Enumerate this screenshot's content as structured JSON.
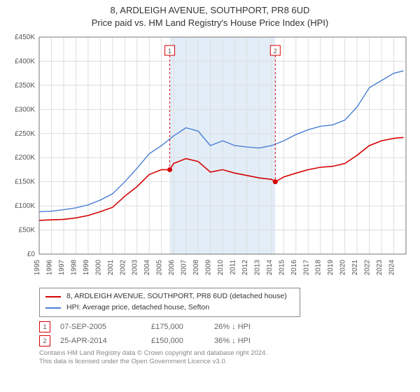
{
  "title_line1": "8, ARDLEIGH AVENUE, SOUTHPORT, PR8 6UD",
  "title_line2": "Price paid vs. HM Land Registry's House Price Index (HPI)",
  "chart": {
    "type": "line",
    "background_color": "#ffffff",
    "plot_border_color": "#777777",
    "grid_color": "#dddddd",
    "shaded_band_color": "#e3edf7",
    "axis_font_size": 10,
    "x_years": [
      "1995",
      "1996",
      "1997",
      "1998",
      "1999",
      "2000",
      "2001",
      "2002",
      "2003",
      "2004",
      "2005",
      "2006",
      "2007",
      "2008",
      "2009",
      "2010",
      "2011",
      "2012",
      "2013",
      "2014",
      "2015",
      "2016",
      "2017",
      "2018",
      "2019",
      "2020",
      "2021",
      "2022",
      "2023",
      "2024"
    ],
    "y": {
      "min": 0,
      "max": 450000,
      "step": 50000,
      "prefix": "£",
      "suffix": "K",
      "divide": 1000
    },
    "shaded_band": {
      "x_from_year": 2005.68,
      "x_to_year": 2014.31
    },
    "series": [
      {
        "name": "8, ARDLEIGH AVENUE, SOUTHPORT, PR8 6UD (detached house)",
        "color": "#d40202",
        "line_width": 1.6,
        "points": [
          [
            1995,
            70000
          ],
          [
            1996,
            71000
          ],
          [
            1997,
            72000
          ],
          [
            1998,
            75000
          ],
          [
            1999,
            80000
          ],
          [
            2000,
            88000
          ],
          [
            2001,
            97000
          ],
          [
            2002,
            120000
          ],
          [
            2003,
            140000
          ],
          [
            2004,
            165000
          ],
          [
            2005,
            175000
          ],
          [
            2005.68,
            175000
          ],
          [
            2006,
            188000
          ],
          [
            2007,
            198000
          ],
          [
            2008,
            192000
          ],
          [
            2009,
            170000
          ],
          [
            2010,
            175000
          ],
          [
            2011,
            168000
          ],
          [
            2012,
            163000
          ],
          [
            2013,
            158000
          ],
          [
            2014,
            155000
          ],
          [
            2014.31,
            150000
          ],
          [
            2015,
            160000
          ],
          [
            2016,
            168000
          ],
          [
            2017,
            175000
          ],
          [
            2018,
            180000
          ],
          [
            2019,
            182000
          ],
          [
            2020,
            188000
          ],
          [
            2021,
            205000
          ],
          [
            2022,
            225000
          ],
          [
            2023,
            235000
          ],
          [
            2024,
            240000
          ],
          [
            2024.8,
            242000
          ]
        ]
      },
      {
        "name": "HPI: Average price, detached house, Sefton",
        "color": "#4a7fd6",
        "line_width": 1.4,
        "points": [
          [
            1995,
            88000
          ],
          [
            1996,
            89000
          ],
          [
            1997,
            92000
          ],
          [
            1998,
            96000
          ],
          [
            1999,
            102000
          ],
          [
            2000,
            112000
          ],
          [
            2001,
            125000
          ],
          [
            2002,
            150000
          ],
          [
            2003,
            178000
          ],
          [
            2004,
            208000
          ],
          [
            2005,
            225000
          ],
          [
            2006,
            245000
          ],
          [
            2007,
            262000
          ],
          [
            2008,
            255000
          ],
          [
            2009,
            225000
          ],
          [
            2010,
            235000
          ],
          [
            2011,
            225000
          ],
          [
            2012,
            222000
          ],
          [
            2013,
            220000
          ],
          [
            2014,
            225000
          ],
          [
            2015,
            235000
          ],
          [
            2016,
            248000
          ],
          [
            2017,
            258000
          ],
          [
            2018,
            265000
          ],
          [
            2019,
            268000
          ],
          [
            2020,
            278000
          ],
          [
            2021,
            305000
          ],
          [
            2022,
            345000
          ],
          [
            2023,
            360000
          ],
          [
            2024,
            375000
          ],
          [
            2024.8,
            380000
          ]
        ]
      }
    ],
    "sale_markers": [
      {
        "n": "1",
        "x_year": 2005.68,
        "y": 175000,
        "box_offset_y": -45
      },
      {
        "n": "2",
        "x_year": 2014.31,
        "y": 150000,
        "box_offset_y": -45
      }
    ],
    "marker_box_border": "#d40202",
    "marker_text_color": "#555555",
    "marker_dot_fill": "#d40202"
  },
  "legend": [
    {
      "color": "#d40202",
      "label": "8, ARDLEIGH AVENUE, SOUTHPORT, PR8 6UD (detached house)"
    },
    {
      "color": "#4a7fd6",
      "label": "HPI: Average price, detached house, Sefton"
    }
  ],
  "sales": [
    {
      "n": "1",
      "date": "07-SEP-2005",
      "price": "£175,000",
      "diff": "26% ↓ HPI"
    },
    {
      "n": "2",
      "date": "25-APR-2014",
      "price": "£150,000",
      "diff": "36% ↓ HPI"
    }
  ],
  "footer_line1": "Contains HM Land Registry data © Crown copyright and database right 2024.",
  "footer_line2": "This data is licensed under the Open Government Licence v3.0."
}
